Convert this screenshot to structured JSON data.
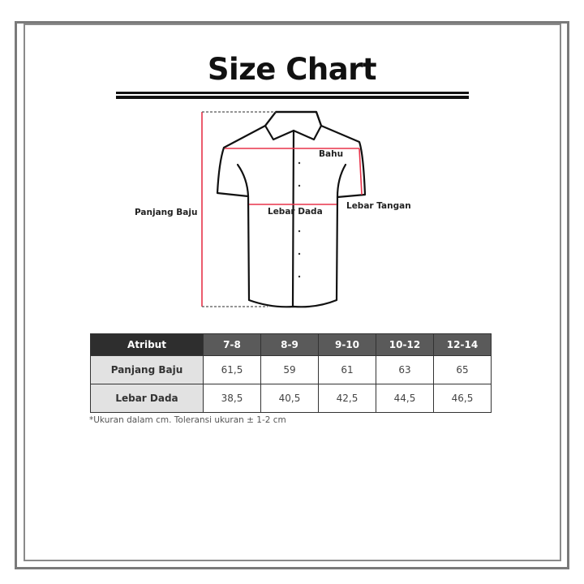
{
  "title": "Size Chart",
  "diagram": {
    "labels": {
      "shoulder": "Bahu",
      "chest": "Lebar Dada",
      "sleeve": "Lebar Tangan",
      "length": "Panjang Baju"
    },
    "measure_color": "#e8334a"
  },
  "table": {
    "header": [
      "Atribut",
      "7-8",
      "8-9",
      "9-10",
      "10-12",
      "12-14"
    ],
    "rows": [
      {
        "label": "Panjang Baju",
        "values": [
          "61,5",
          "59",
          "61",
          "63",
          "65"
        ]
      },
      {
        "label": "Lebar Dada",
        "values": [
          "38,5",
          "40,5",
          "42,5",
          "44,5",
          "46,5"
        ]
      }
    ]
  },
  "note": "*Ukuran dalam cm. Toleransi ukuran ± 1-2 cm"
}
